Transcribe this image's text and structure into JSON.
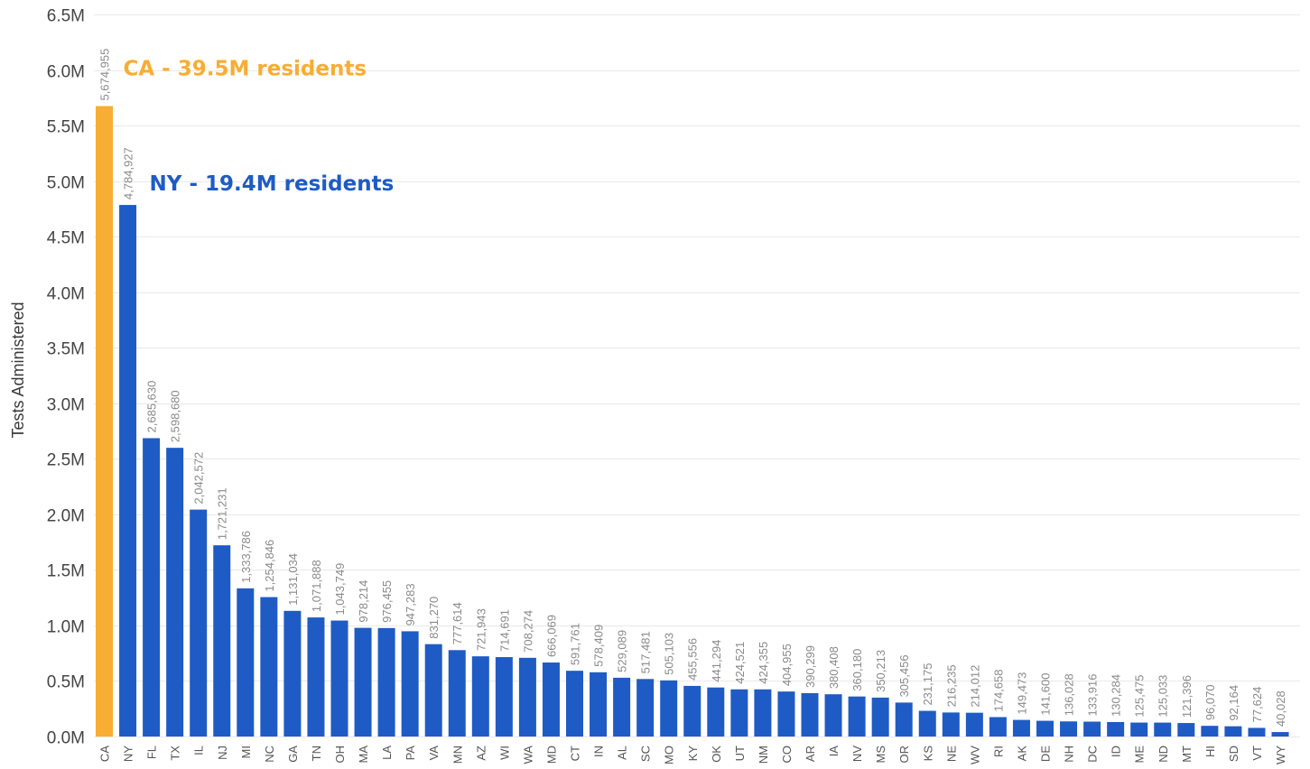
{
  "chart_data": {
    "type": "bar",
    "title": "",
    "xlabel": "",
    "ylabel": "Tests Administered",
    "ylim": [
      0,
      6500000
    ],
    "y_ticks": [
      {
        "value": 0,
        "label": "0.0M"
      },
      {
        "value": 500000,
        "label": "0.5M"
      },
      {
        "value": 1000000,
        "label": "1.0M"
      },
      {
        "value": 1500000,
        "label": "1.5M"
      },
      {
        "value": 2000000,
        "label": "2.0M"
      },
      {
        "value": 2500000,
        "label": "2.5M"
      },
      {
        "value": 3000000,
        "label": "3.0M"
      },
      {
        "value": 3500000,
        "label": "3.5M"
      },
      {
        "value": 4000000,
        "label": "4.0M"
      },
      {
        "value": 4500000,
        "label": "4.5M"
      },
      {
        "value": 5000000,
        "label": "5.0M"
      },
      {
        "value": 5500000,
        "label": "5.5M"
      },
      {
        "value": 6000000,
        "label": "6.0M"
      },
      {
        "value": 6500000,
        "label": "6.5M"
      }
    ],
    "grid": true,
    "categories": [
      "CA",
      "NY",
      "FL",
      "TX",
      "IL",
      "NJ",
      "MI",
      "NC",
      "GA",
      "TN",
      "OH",
      "MA",
      "LA",
      "PA",
      "VA",
      "MN",
      "AZ",
      "WI",
      "WA",
      "MD",
      "CT",
      "IN",
      "AL",
      "SC",
      "MO",
      "KY",
      "OK",
      "UT",
      "NM",
      "CO",
      "AR",
      "IA",
      "NV",
      "MS",
      "OR",
      "KS",
      "NE",
      "WV",
      "RI",
      "AK",
      "DE",
      "NH",
      "DC",
      "ID",
      "ME",
      "ND",
      "MT",
      "HI",
      "SD",
      "VT",
      "WY"
    ],
    "values": [
      5674955,
      4784927,
      2685630,
      2598680,
      2042572,
      1721231,
      1333786,
      1254846,
      1131034,
      1071888,
      1043749,
      978214,
      976455,
      947283,
      831270,
      777614,
      721943,
      714691,
      708274,
      666069,
      591761,
      578409,
      529089,
      517481,
      505103,
      455556,
      441294,
      424521,
      424355,
      404955,
      390299,
      380408,
      360180,
      350213,
      305456,
      231175,
      216235,
      214012,
      174658,
      149473,
      141600,
      136028,
      133916,
      130284,
      125475,
      125033,
      121396,
      96070,
      92164,
      77624,
      40028
    ],
    "value_labels": [
      "5,674,955",
      "4,784,927",
      "2,685,630",
      "2,598,680",
      "2,042,572",
      "1,721,231",
      "1,333,786",
      "1,254,846",
      "1,131,034",
      "1,071,888",
      "1,043,749",
      "978,214",
      "976,455",
      "947,283",
      "831,270",
      "777,614",
      "721,943",
      "714,691",
      "708,274",
      "666,069",
      "591,761",
      "578,409",
      "529,089",
      "517,481",
      "505,103",
      "455,556",
      "441,294",
      "424,521",
      "424,355",
      "404,955",
      "390,299",
      "380,408",
      "360,180",
      "350,213",
      "305,456",
      "231,175",
      "216,235",
      "214,012",
      "174,658",
      "149,473",
      "141,600",
      "136,028",
      "133,916",
      "130,284",
      "125,475",
      "125,033",
      "121,396",
      "96,070",
      "92,164",
      "77,624",
      "40,028"
    ],
    "colors": {
      "default_bar": "#1f5bc4",
      "highlight_bar": "#f8ad33",
      "grid": "#e9e9e9"
    },
    "highlight_index": 0,
    "annotations": [
      {
        "text": "CA - 39.5M residents",
        "anchor_category": "CA",
        "color": "#f8ad33"
      },
      {
        "text": "NY - 19.4M residents",
        "anchor_category": "NY",
        "color": "#1f5bc4"
      }
    ]
  }
}
